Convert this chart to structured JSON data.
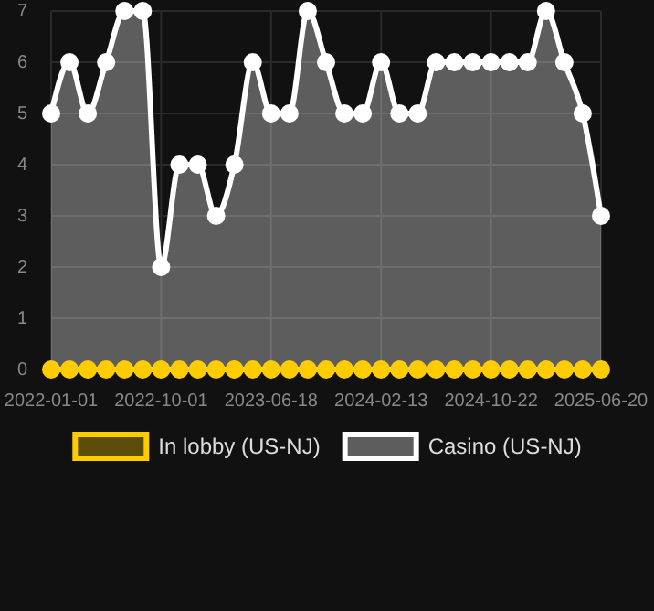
{
  "chart_data": {
    "type": "area",
    "categories": [
      "2022-01-01",
      null,
      null,
      null,
      null,
      null,
      "2022-10-01",
      null,
      null,
      null,
      null,
      null,
      "2023-06-18",
      null,
      null,
      null,
      null,
      null,
      "2024-02-13",
      null,
      null,
      null,
      null,
      null,
      "2024-10-22",
      null,
      null,
      null,
      null,
      null,
      "2025-06-20"
    ],
    "series": [
      {
        "name": "In lobby (US-NJ)",
        "type": "line",
        "color": "#ffcc00",
        "values": [
          0,
          0,
          0,
          0,
          0,
          0,
          0,
          0,
          0,
          0,
          0,
          0,
          0,
          0,
          0,
          0,
          0,
          0,
          0,
          0,
          0,
          0,
          0,
          0,
          0,
          0,
          0,
          0,
          0,
          0,
          0
        ]
      },
      {
        "name": "Casino (US-NJ)",
        "color": "#ffffff",
        "values": [
          5,
          6,
          5,
          6,
          7,
          7,
          2,
          4,
          4,
          3,
          4,
          6,
          5,
          5,
          7,
          6,
          5,
          5,
          6,
          5,
          5,
          6,
          6,
          6,
          6,
          6,
          6,
          7,
          6,
          5,
          3
        ]
      }
    ],
    "ylim": [
      0,
      7
    ],
    "yticks": [
      0,
      1,
      2,
      3,
      4,
      5,
      6,
      7
    ],
    "grid": true,
    "legend": "bottom",
    "marker": "circle",
    "line_style": "solid"
  }
}
